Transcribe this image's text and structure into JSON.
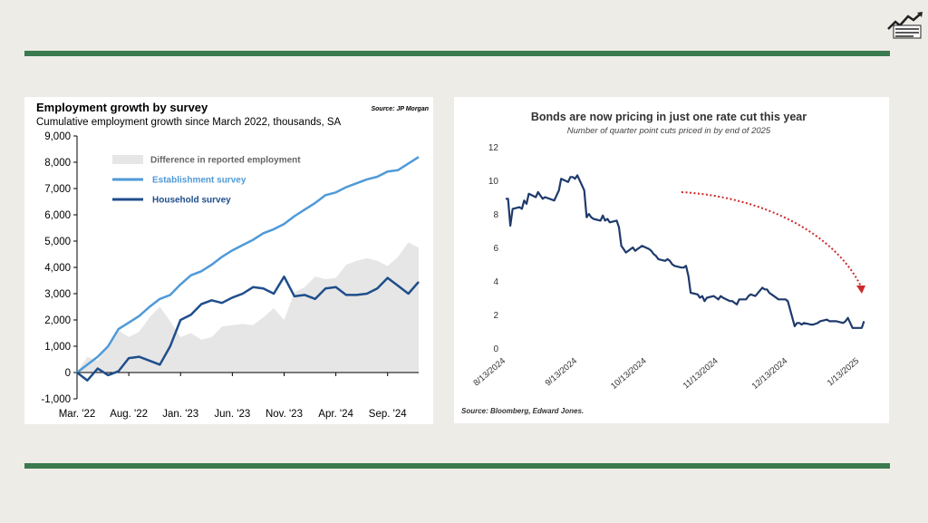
{
  "chart_data": [
    {
      "type": "area",
      "title": "Employment growth by survey",
      "subtitle": "Cumulative employment growth since March 2022, thousands, SA",
      "source": "Source: JP Morgan",
      "ylim": [
        -1000,
        9000
      ],
      "yticks": [
        "9,000",
        "8,000",
        "7,000",
        "6,000",
        "5,000",
        "4,000",
        "3,000",
        "2,000",
        "1,000",
        "0",
        "-1,000"
      ],
      "ytick_values": [
        9000,
        8000,
        7000,
        6000,
        5000,
        4000,
        3000,
        2000,
        1000,
        0,
        -1000
      ],
      "x_range": [
        0,
        33
      ],
      "xticks": [
        "Mar. '22",
        "Aug. '22",
        "Jan. '23",
        "Jun. '23",
        "Nov. '23",
        "Apr. '24",
        "Sep. '24"
      ],
      "xtick_positions": [
        0,
        5,
        10,
        15,
        20,
        25,
        30
      ],
      "legend": [
        "Difference in reported employment",
        "Establishment survey",
        "Household survey"
      ],
      "colors": {
        "difference": "#e6e6e6",
        "establishment": "#4f9ad8",
        "household": "#1f4e8c"
      },
      "grid": false,
      "series": [
        {
          "name": "Establishment survey",
          "x": [
            0,
            1,
            2,
            3,
            4,
            5,
            6,
            7,
            8,
            9,
            10,
            11,
            12,
            13,
            14,
            15,
            16,
            17,
            18,
            19,
            20,
            21,
            22,
            23,
            24,
            25,
            26,
            27,
            28,
            29,
            30,
            31,
            32,
            33
          ],
          "values": [
            0,
            300,
            600,
            1000,
            1650,
            1900,
            2150,
            2500,
            2800,
            2950,
            3350,
            3700,
            3850,
            4100,
            4400,
            4650,
            4850,
            5050,
            5300,
            5450,
            5650,
            5950,
            6200,
            6450,
            6750,
            6850,
            7050,
            7200,
            7350,
            7450,
            7650,
            7700,
            7950,
            8200
          ]
        },
        {
          "name": "Household survey",
          "x": [
            0,
            1,
            2,
            3,
            4,
            5,
            6,
            7,
            8,
            9,
            10,
            11,
            12,
            13,
            14,
            15,
            16,
            17,
            18,
            19,
            20,
            21,
            22,
            23,
            24,
            25,
            26,
            27,
            28,
            29,
            30,
            31,
            32,
            33
          ],
          "values": [
            0,
            -300,
            150,
            -100,
            50,
            550,
            600,
            450,
            300,
            1000,
            2000,
            2200,
            2600,
            2750,
            2650,
            2850,
            3000,
            3250,
            3200,
            3000,
            3650,
            2900,
            2950,
            2800,
            3200,
            3250,
            2950,
            2950,
            3000,
            3200,
            3600,
            3300,
            3000,
            3450
          ]
        },
        {
          "name": "Difference in reported employment",
          "x": [
            0,
            1,
            2,
            3,
            4,
            5,
            6,
            7,
            8,
            9,
            10,
            11,
            12,
            13,
            14,
            15,
            16,
            17,
            18,
            19,
            20,
            21,
            22,
            23,
            24,
            25,
            26,
            27,
            28,
            29,
            30,
            31,
            32,
            33
          ],
          "values": [
            0,
            600,
            450,
            1100,
            1600,
            1350,
            1550,
            2100,
            2500,
            1950,
            1350,
            1500,
            1250,
            1350,
            1750,
            1800,
            1850,
            1800,
            2100,
            2450,
            2000,
            3050,
            3250,
            3650,
            3550,
            3600,
            4100,
            4250,
            4350,
            4250,
            4050,
            4400,
            4950,
            4750
          ]
        }
      ]
    },
    {
      "type": "line",
      "title": "Bonds are now pricing in just one rate cut this year",
      "subtitle": "Number of quarter point cuts priced in by end of 2025",
      "source": "Source: Bloomberg, Edward Jones.",
      "ylim": [
        0,
        12
      ],
      "yticks": [
        "12",
        "10",
        "8",
        "6",
        "4",
        "2",
        "0"
      ],
      "ytick_values": [
        12,
        10,
        8,
        6,
        4,
        2,
        0
      ],
      "x_range": [
        "8/13/2024",
        "1/16/2025"
      ],
      "xticks": [
        "8/13/2024",
        "9/13/2024",
        "10/13/2024",
        "11/13/2024",
        "12/13/2024",
        "1/13/2025"
      ],
      "xtick_dates": [
        "2024-08-13",
        "2024-09-13",
        "2024-10-13",
        "2024-11-13",
        "2024-12-13",
        "2025-01-13"
      ],
      "colors": {
        "line": "#1f3a6b",
        "arrow": "#cc2a2a"
      },
      "grid": false,
      "series": [
        {
          "x": [
            "2024-08-13",
            "2024-08-14",
            "2024-08-15",
            "2024-08-16",
            "2024-08-19",
            "2024-08-20",
            "2024-08-21",
            "2024-08-22",
            "2024-08-23",
            "2024-08-26",
            "2024-08-27",
            "2024-08-28",
            "2024-08-29",
            "2024-08-30",
            "2024-09-03",
            "2024-09-04",
            "2024-09-05",
            "2024-09-06",
            "2024-09-09",
            "2024-09-10",
            "2024-09-11",
            "2024-09-12",
            "2024-09-13",
            "2024-09-16",
            "2024-09-17",
            "2024-09-18",
            "2024-09-19",
            "2024-09-20",
            "2024-09-23",
            "2024-09-24",
            "2024-09-25",
            "2024-09-26",
            "2024-09-27",
            "2024-09-30",
            "2024-10-01",
            "2024-10-02",
            "2024-10-03",
            "2024-10-04",
            "2024-10-07",
            "2024-10-08",
            "2024-10-09",
            "2024-10-10",
            "2024-10-11",
            "2024-10-14",
            "2024-10-15",
            "2024-10-16",
            "2024-10-17",
            "2024-10-18",
            "2024-10-21",
            "2024-10-22",
            "2024-10-23",
            "2024-10-24",
            "2024-10-25",
            "2024-10-28",
            "2024-10-29",
            "2024-10-30",
            "2024-10-31",
            "2024-11-01",
            "2024-11-04",
            "2024-11-05",
            "2024-11-06",
            "2024-11-07",
            "2024-11-08",
            "2024-11-11",
            "2024-11-12",
            "2024-11-13",
            "2024-11-14",
            "2024-11-15",
            "2024-11-18",
            "2024-11-19",
            "2024-11-20",
            "2024-11-21",
            "2024-11-22",
            "2024-11-25",
            "2024-11-26",
            "2024-11-27",
            "2024-11-29",
            "2024-12-02",
            "2024-12-03",
            "2024-12-04",
            "2024-12-05",
            "2024-12-06",
            "2024-12-09",
            "2024-12-10",
            "2024-12-11",
            "2024-12-12",
            "2024-12-13",
            "2024-12-16",
            "2024-12-17",
            "2024-12-18",
            "2024-12-19",
            "2024-12-20",
            "2024-12-23",
            "2024-12-24",
            "2024-12-26",
            "2024-12-27",
            "2024-12-30",
            "2024-12-31",
            "2025-01-02",
            "2025-01-03",
            "2025-01-06",
            "2025-01-07",
            "2025-01-08",
            "2025-01-10",
            "2025-01-13",
            "2025-01-14",
            "2025-01-15"
          ],
          "values": [
            8.9,
            8.9,
            7.3,
            8.3,
            8.4,
            8.3,
            8.8,
            8.6,
            9.2,
            9.0,
            9.3,
            9.1,
            8.9,
            9.0,
            8.8,
            9.1,
            9.4,
            10.1,
            9.9,
            10.2,
            10.2,
            10.1,
            10.3,
            9.4,
            7.8,
            8.0,
            7.8,
            7.7,
            7.6,
            7.9,
            7.6,
            7.7,
            7.5,
            7.6,
            7.2,
            6.1,
            5.9,
            5.7,
            6.0,
            5.8,
            5.9,
            6.0,
            6.1,
            5.9,
            5.8,
            5.6,
            5.5,
            5.3,
            5.2,
            5.3,
            5.2,
            5.0,
            4.9,
            4.8,
            4.8,
            4.9,
            4.3,
            3.3,
            3.2,
            3.0,
            3.1,
            2.8,
            3.0,
            3.1,
            3.0,
            2.9,
            3.1,
            3.0,
            2.8,
            2.8,
            2.7,
            2.6,
            2.9,
            2.9,
            3.1,
            3.2,
            3.1,
            3.6,
            3.5,
            3.5,
            3.3,
            3.2,
            2.9,
            2.9,
            2.9,
            2.9,
            2.8,
            1.3,
            1.5,
            1.5,
            1.4,
            1.5,
            1.4,
            1.4,
            1.5,
            1.6,
            1.7,
            1.6,
            1.6,
            1.6,
            1.5,
            1.6,
            1.8,
            1.2,
            1.2,
            1.2,
            1.6
          ]
        }
      ]
    }
  ]
}
